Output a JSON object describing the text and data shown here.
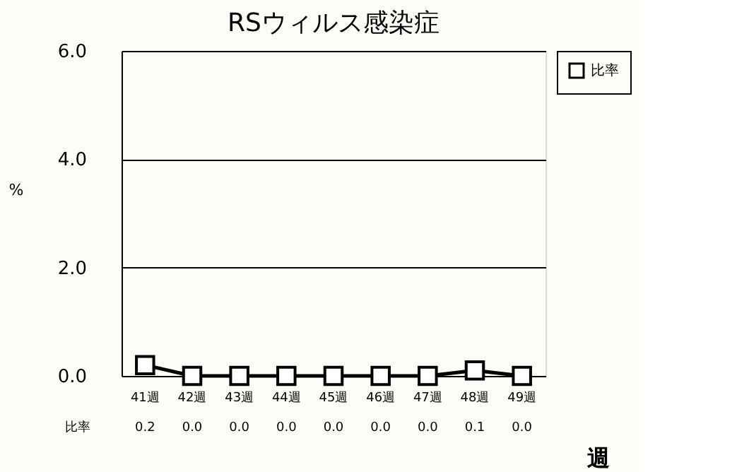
{
  "chart_data": {
    "type": "line",
    "title": "RSウィルス感染症",
    "ylabel": "%",
    "xlabel": "週",
    "categories": [
      "41週",
      "42週",
      "43週",
      "44週",
      "45週",
      "46週",
      "47週",
      "48週",
      "49週"
    ],
    "series": [
      {
        "name": "比率",
        "color": "#000000",
        "values": [
          0.2,
          0.0,
          0.0,
          0.0,
          0.0,
          0.0,
          0.0,
          0.1,
          0.0
        ],
        "value_labels": [
          "0.2",
          "0.0",
          "0.0",
          "0.0",
          "0.0",
          "0.0",
          "0.0",
          "0.1",
          "0.0"
        ]
      }
    ],
    "ylim": [
      0,
      6
    ],
    "yticks": [
      {
        "value": 0,
        "label": "0.0"
      },
      {
        "value": 2,
        "label": "2.0"
      },
      {
        "value": 4,
        "label": "4.0"
      },
      {
        "value": 6,
        "label": "6.0"
      }
    ],
    "grid": "y",
    "legend": "top right",
    "marker": "square",
    "line_style": "solid"
  }
}
